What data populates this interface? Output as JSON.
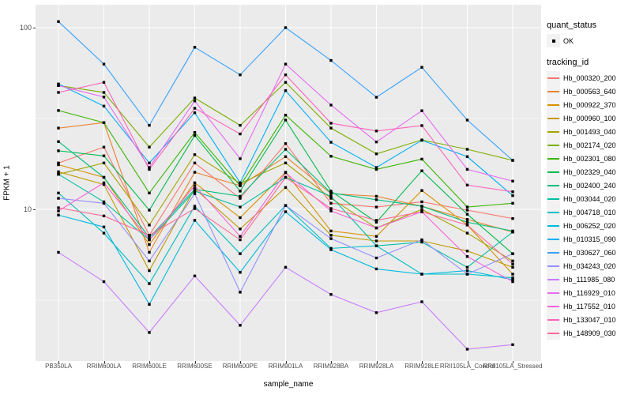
{
  "chart_data": {
    "type": "line",
    "xlabel": "sample_name",
    "ylabel": "FPKM + 1",
    "y_scale": "log10",
    "ylim": [
      1.5,
      134
    ],
    "y_ticks": [
      100,
      10
    ],
    "y_minor_gridlines": [
      31.6,
      3.16
    ],
    "grid": true,
    "panel_bg": "#EBEBEB",
    "grid_color": "#FFFFFF",
    "marker": "black-square",
    "legend_position": "right",
    "categories": [
      "PB350LA",
      "RRIM600LA",
      "RRIM600LE",
      "RRIM600SE",
      "RRIM600PE",
      "RRIM901LA",
      "RRIM928BA",
      "RRIM928LA",
      "RRIM928LE",
      "RRII105LA_Control",
      "RRII105LA_Stressed"
    ],
    "series": [
      {
        "name": "Hb_000320_200",
        "color": "#F8766D",
        "values": [
          18,
          22,
          7.2,
          18,
          11.5,
          23,
          10.8,
          10.3,
          11,
          9.9,
          8.9
        ]
      },
      {
        "name": "Hb_000563_640",
        "color": "#EA8331",
        "values": [
          28,
          30,
          5.8,
          16,
          13.5,
          19.5,
          12.2,
          11.8,
          10.4,
          8.8,
          7.5
        ]
      },
      {
        "name": "Hb_000922_370",
        "color": "#D89000",
        "values": [
          17.6,
          15,
          6.4,
          14,
          9,
          16,
          7.6,
          7.1,
          12.7,
          8.2,
          4.4
        ]
      },
      {
        "name": "Hb_000960_100",
        "color": "#C09B00",
        "values": [
          16.1,
          13.7,
          4.6,
          13,
          7.8,
          13.2,
          7.2,
          6.7,
          6.7,
          5.9,
          4.8
        ]
      },
      {
        "name": "Hb_001493_040",
        "color": "#A3A500",
        "values": [
          15.6,
          18,
          8.2,
          20,
          13.9,
          18,
          11.5,
          7.9,
          10,
          7.4,
          5.2
        ]
      },
      {
        "name": "Hb_002174_020",
        "color": "#7CAE00",
        "values": [
          48,
          44,
          22,
          41,
          29,
          50,
          28,
          20.2,
          24.1,
          21.4,
          18.6
        ]
      },
      {
        "name": "Hb_002301_080",
        "color": "#39B600",
        "values": [
          35,
          30,
          12.3,
          26.5,
          13.5,
          33,
          19.6,
          16.6,
          18.9,
          10.3,
          10.8
        ]
      },
      {
        "name": "Hb_002329_040",
        "color": "#00BB4E",
        "values": [
          21,
          19.7,
          9.9,
          25.5,
          12.6,
          31,
          12.6,
          8.5,
          16.3,
          9.4,
          5.7
        ]
      },
      {
        "name": "Hb_002400_240",
        "color": "#00BF7D",
        "values": [
          23.6,
          15,
          7,
          12.9,
          11.8,
          21.4,
          12.3,
          11.3,
          10.4,
          8.5,
          7.6
        ]
      },
      {
        "name": "Hb_003044_020",
        "color": "#00C1A3",
        "values": [
          15.6,
          11,
          6.8,
          12.6,
          10.3,
          15,
          11.8,
          6.3,
          6.6,
          4.8,
          7.5
        ]
      },
      {
        "name": "Hb_004718_010",
        "color": "#00BFC4",
        "values": [
          12.3,
          7.4,
          3.9,
          10.4,
          5.7,
          10.5,
          6.1,
          6.3,
          4.4,
          4.4,
          4.2
        ]
      },
      {
        "name": "Hb_006252_020",
        "color": "#00BAE0",
        "values": [
          9.3,
          8,
          3,
          8.7,
          4.5,
          9.7,
          6,
          4.7,
          4.4,
          4.6,
          4.1
        ]
      },
      {
        "name": "Hb_010315_090",
        "color": "#00B0F6",
        "values": [
          49,
          37,
          18,
          34,
          14,
          45,
          23.4,
          17,
          24,
          19.5,
          11.9
        ]
      },
      {
        "name": "Hb_030627_060",
        "color": "#35A2FF",
        "values": [
          108,
          63,
          29,
          78,
          55,
          100,
          66,
          41.4,
          60.5,
          31,
          18.6
        ]
      },
      {
        "name": "Hb_034243_020",
        "color": "#9590FF",
        "values": [
          11.5,
          10.8,
          5.2,
          12.2,
          3.5,
          10.5,
          6.9,
          5.4,
          6.8,
          4.4,
          5.7
        ]
      },
      {
        "name": "Hb_111985_080",
        "color": "#C77CFF",
        "values": [
          5.8,
          4,
          2.1,
          4.3,
          2.3,
          4.8,
          3.4,
          2.7,
          3.1,
          1.7,
          1.8
        ]
      },
      {
        "name": "Hb_116929_010",
        "color": "#E76BF3",
        "values": [
          48,
          41.5,
          17,
          39.5,
          19,
          63,
          37.5,
          23.5,
          34.9,
          16.6,
          14.3
        ]
      },
      {
        "name": "Hb_117552_010",
        "color": "#FA62DB",
        "values": [
          9.8,
          14,
          6.8,
          13.5,
          7.1,
          15.9,
          9.8,
          7.9,
          9.7,
          5.5,
          4
        ]
      },
      {
        "name": "Hb_133047_010",
        "color": "#FF62BC",
        "values": [
          44,
          50,
          16.6,
          36,
          26,
          55,
          29.8,
          27,
          28.9,
          13.6,
          12.5
        ]
      },
      {
        "name": "Hb_148909_030",
        "color": "#FF6A98",
        "values": [
          10.2,
          9.2,
          7.2,
          10.1,
          6.8,
          15,
          10.1,
          8.7,
          9.7,
          8.2,
          5
        ]
      }
    ],
    "legend": {
      "quant_status_title": "quant_status",
      "quant_status_ok_label": "OK",
      "tracking_title": "tracking_id"
    }
  }
}
